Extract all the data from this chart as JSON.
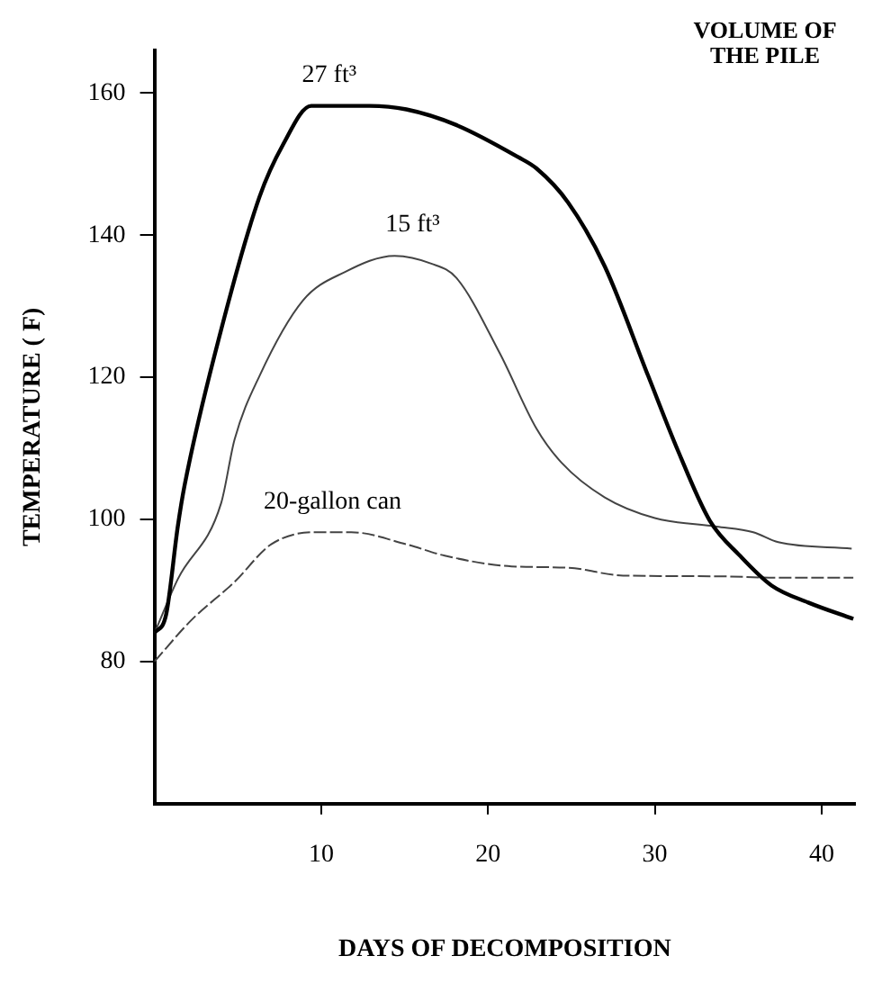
{
  "chart_data": {
    "type": "line",
    "title": "VOLUME OF THE PILE",
    "xlabel": "DAYS OF DECOMPOSITION",
    "ylabel": "TEMPERATURE ( F)",
    "xlim": [
      0,
      42
    ],
    "ylim": [
      60,
      166
    ],
    "xticks": [
      10,
      20,
      30,
      40
    ],
    "yticks": [
      80,
      100,
      120,
      140,
      160
    ],
    "grid": false,
    "legend": false,
    "marker": "none",
    "series": [
      {
        "name": "27 ft³",
        "color": "#000000",
        "line_style": "solid",
        "x": [
          0,
          0.7,
          1.4,
          1.8,
          4.0,
          6.3,
          7.7,
          9.4,
          12.9,
          15.1,
          18.1,
          21.8,
          22.9,
          24.8,
          27,
          29.6,
          31.4,
          33.3,
          35.1,
          37,
          39.2,
          41.9
        ],
        "values": [
          84,
          86.6,
          99,
          104.7,
          126.7,
          145.4,
          152.7,
          158.2,
          158.2,
          157.7,
          155.5,
          151,
          149.4,
          144.6,
          135.6,
          120.2,
          109.6,
          99.8,
          94.9,
          90.7,
          88.3,
          86
        ]
      },
      {
        "name": "15 ft³",
        "color": "#444444",
        "line_style": "solid",
        "x": [
          0,
          1.4,
          4,
          4.8,
          6.3,
          8.9,
          11.4,
          14.4,
          16.6,
          18.1,
          20.7,
          22.9,
          24.4,
          27,
          30,
          33.7,
          35.9,
          37.4,
          41.8
        ],
        "values": [
          84,
          91.6,
          102.3,
          111.2,
          120.2,
          130.8,
          134.8,
          137.1,
          136,
          134,
          123.4,
          112.8,
          108,
          103.1,
          100.2,
          99,
          98.2,
          96.8,
          95.9
        ]
      },
      {
        "name": "20-gallon can",
        "color": "#444444",
        "line_style": "dashed",
        "x": [
          0,
          2.2,
          4.8,
          7,
          9.6,
          11.8,
          15.1,
          17.4,
          21.4,
          24.8,
          28.1,
          33.7,
          37.4,
          41.9
        ],
        "values": [
          80,
          85.8,
          91.2,
          96.5,
          98.2,
          98.2,
          96.5,
          94.9,
          93.4,
          93.2,
          92.1,
          92,
          91.8,
          91.8
        ]
      }
    ]
  }
}
